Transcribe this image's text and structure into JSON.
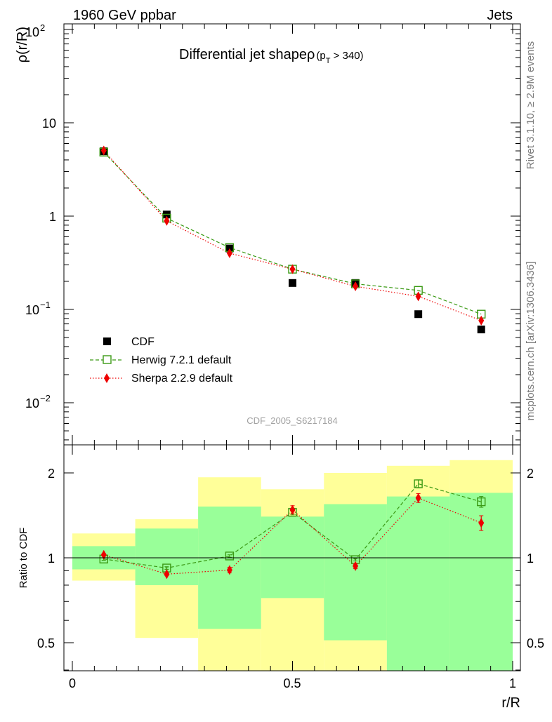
{
  "header": {
    "left": "1960 GeV ppbar",
    "right": "Jets"
  },
  "side_labels": {
    "rivet": "Rivet 3.1.10, ≥ 2.9M events",
    "mcplots": "mcplots.cern.ch [arXiv:1306.3436]"
  },
  "chart_data": [
    {
      "type": "scatter",
      "panel": "main",
      "title_main": "Differential jet shape",
      "title_rho": "ρ",
      "title_cut": "(p",
      "title_sub": "T",
      "title_tail": " > 340)",
      "ylabel": "ρ(r/R)",
      "yscale": "log",
      "ylim": [
        0.004,
        140
      ],
      "xlim": [
        0,
        1
      ],
      "ytick_labels": [
        "10",
        "1"
      ],
      "ytick_pow": [
        {
          "base": "10",
          "exp": "2"
        },
        {
          "base": "10",
          "exp": "−1"
        },
        {
          "base": "10",
          "exp": "−2"
        }
      ],
      "watermark": "CDF_2005_S6217184",
      "x": [
        0.0714,
        0.2143,
        0.3571,
        0.5,
        0.6429,
        0.7857,
        0.9286
      ],
      "series": [
        {
          "name": "CDF",
          "color": "#000000",
          "marker": "square-filled",
          "values": [
            4.95,
            1.04,
            0.45,
            0.192,
            0.192,
            0.089,
            0.061
          ]
        },
        {
          "name": "Herwig 7.2.1 default",
          "color": "#3b9a15",
          "marker": "square-open",
          "line": "dashed",
          "values": [
            4.85,
            0.95,
            0.46,
            0.27,
            0.188,
            0.16,
            0.089
          ]
        },
        {
          "name": "Sherpa 2.2.9 default",
          "color": "#ee0000",
          "marker": "diamond",
          "line": "dotted",
          "values": [
            5.05,
            0.89,
            0.4,
            0.27,
            0.177,
            0.138,
            0.076
          ]
        }
      ]
    },
    {
      "type": "scatter",
      "panel": "ratio",
      "ylabel": "Ratio to CDF",
      "yscale": "log",
      "ylim": [
        0.4,
        2.35
      ],
      "xlim": [
        0,
        1
      ],
      "xlabel": "r/R",
      "xtick_labels": [
        "0",
        "0.5",
        "1"
      ],
      "ytick_labels": [
        "2",
        "1",
        "0.5"
      ],
      "bin_edges": [
        0,
        0.1429,
        0.2857,
        0.4286,
        0.5714,
        0.7143,
        0.8571,
        1.0
      ],
      "band_yellow": [
        [
          0.83,
          1.22
        ],
        [
          0.52,
          1.37
        ],
        [
          0.3,
          1.93
        ],
        [
          0.36,
          1.75
        ],
        [
          0.3,
          2.0
        ],
        [
          0.2,
          2.12
        ],
        [
          0.2,
          2.22
        ]
      ],
      "band_green": [
        [
          0.91,
          1.1
        ],
        [
          0.8,
          1.27
        ],
        [
          0.56,
          1.52
        ],
        [
          0.72,
          1.4
        ],
        [
          0.51,
          1.55
        ],
        [
          0.38,
          1.65
        ],
        [
          0.34,
          1.7
        ]
      ],
      "x": [
        0.0714,
        0.2143,
        0.3571,
        0.5,
        0.6429,
        0.7857,
        0.9286
      ],
      "series": [
        {
          "name": "Herwig 7.2.1 default",
          "color": "#3b9a15",
          "marker": "square-open",
          "values": [
            0.99,
            0.92,
            1.015,
            1.45,
            0.985,
            1.83,
            1.58
          ],
          "errors": [
            0.01,
            0.01,
            0.01,
            0.03,
            0.01,
            0.06,
            0.07
          ]
        },
        {
          "name": "Sherpa 2.2.9 default",
          "color": "#ee0000",
          "marker": "diamond",
          "values": [
            1.025,
            0.875,
            0.905,
            1.48,
            0.935,
            1.63,
            1.33
          ],
          "errors": [
            0.01,
            0.01,
            0.02,
            0.05,
            0.02,
            0.06,
            0.08
          ]
        }
      ]
    }
  ]
}
